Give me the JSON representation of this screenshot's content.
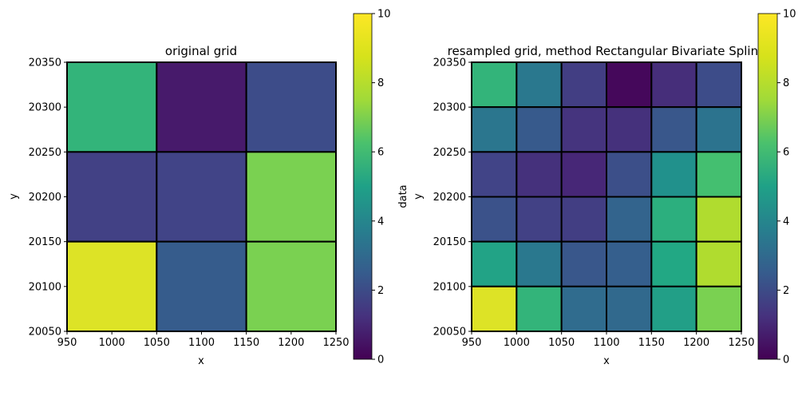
{
  "chart_data": [
    {
      "type": "heatmap",
      "title": "original grid",
      "xlabel": "x",
      "ylabel": "y",
      "xlim": [
        950,
        1250
      ],
      "ylim": [
        20050,
        20350
      ],
      "x_edges": [
        950,
        1050,
        1150,
        1250
      ],
      "y_edges": [
        20050,
        20150,
        20250,
        20350
      ],
      "xticks": [
        "950",
        "1000",
        "1050",
        "1100",
        "1150",
        "1200",
        "1250"
      ],
      "yticks": [
        "20050",
        "20100",
        "20150",
        "20200",
        "20250",
        "20300",
        "20350"
      ],
      "values_top_to_bottom": [
        [
          6.5,
          0.7,
          2.3
        ],
        [
          1.9,
          2.0,
          8.0
        ],
        [
          9.5,
          2.9,
          8.0
        ]
      ],
      "colorbar": {
        "label": "data",
        "range": [
          0,
          10
        ],
        "ticks": [
          "0",
          "2",
          "4",
          "6",
          "8",
          "10"
        ]
      }
    },
    {
      "type": "heatmap",
      "title": "resampled grid, method Rectangular Bivariate Spline",
      "xlabel": "x",
      "ylabel": "y",
      "xlim": [
        950,
        1250
      ],
      "ylim": [
        20050,
        20350
      ],
      "x_edges": [
        950,
        1000,
        1050,
        1100,
        1150,
        1200,
        1250
      ],
      "y_edges": [
        20050,
        20100,
        20150,
        20200,
        20250,
        20300,
        20350
      ],
      "xticks": [
        "950",
        "1000",
        "1050",
        "1100",
        "1150",
        "1200",
        "1250"
      ],
      "yticks": [
        "20050",
        "20100",
        "20150",
        "20200",
        "20250",
        "20300",
        "20350"
      ],
      "values_top_to_bottom": [
        [
          6.5,
          4.0,
          1.8,
          0.2,
          1.3,
          2.3
        ],
        [
          3.9,
          2.8,
          1.5,
          1.4,
          2.7,
          3.8
        ],
        [
          2.0,
          1.4,
          1.1,
          2.4,
          5.0,
          7.0
        ],
        [
          2.5,
          1.9,
          1.8,
          3.2,
          6.3,
          8.8
        ],
        [
          5.8,
          4.0,
          2.7,
          3.0,
          6.0,
          8.8
        ],
        [
          9.5,
          6.5,
          3.5,
          3.4,
          5.6,
          8.0
        ]
      ],
      "colorbar": {
        "label": "",
        "range": [
          0,
          10
        ],
        "ticks": [
          "0",
          "2",
          "4",
          "6",
          "8",
          "10"
        ]
      }
    }
  ]
}
